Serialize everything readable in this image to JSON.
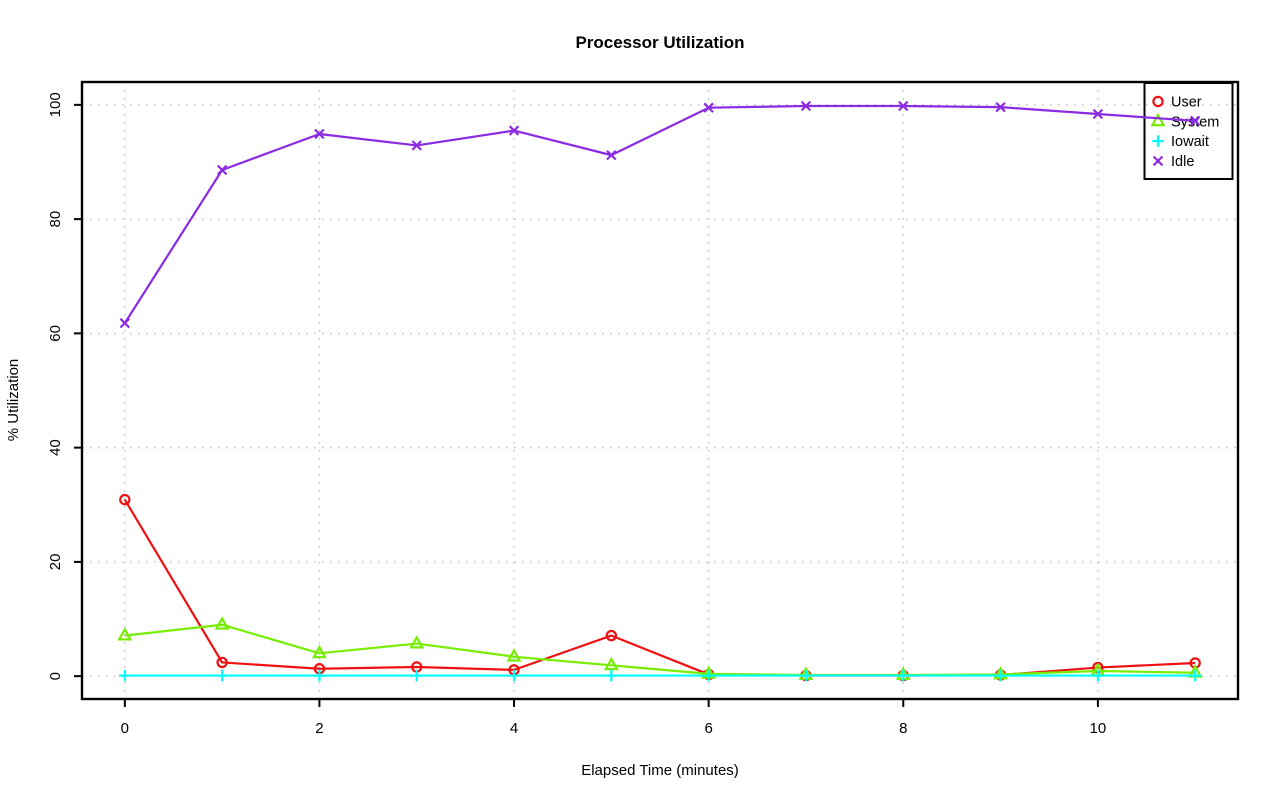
{
  "title": "Processor Utilization",
  "colors": {
    "user": "#EE1111",
    "system": "#76EE00",
    "iowait": "#00FFFF",
    "idle": "#8A2BE2",
    "grid": "#C4C4C4",
    "axis": "#000000",
    "background": "#FFFFFF"
  },
  "chart_data": {
    "type": "line",
    "title": "Processor Utilization",
    "xlabel": "Elapsed Time (minutes)",
    "ylabel": "% Utilization",
    "x": [
      0,
      1,
      2,
      3,
      4,
      5,
      6,
      7,
      8,
      9,
      10,
      11
    ],
    "xticks": [
      0,
      2,
      4,
      6,
      8,
      10
    ],
    "yticks": [
      0,
      20,
      40,
      60,
      80,
      100
    ],
    "xlim": [
      -0.44,
      11.44
    ],
    "ylim": [
      -4,
      104
    ],
    "grid": true,
    "grid_style": "dotted",
    "legend_position": "top-right",
    "legend_border": true,
    "series": [
      {
        "name": "User",
        "color": "#EE1111",
        "marker": "circle-open",
        "values": [
          30.9,
          2.4,
          1.3,
          1.6,
          1.1,
          7.1,
          0.3,
          0.1,
          0.1,
          0.2,
          1.5,
          2.3
        ]
      },
      {
        "name": "System",
        "color": "#76EE00",
        "marker": "triangle-open",
        "values": [
          7.1,
          9.0,
          4.0,
          5.7,
          3.4,
          1.9,
          0.4,
          0.2,
          0.2,
          0.3,
          0.9,
          0.6
        ]
      },
      {
        "name": "Iowait",
        "color": "#00FFFF",
        "marker": "plus",
        "values": [
          0.1,
          0.1,
          0.1,
          0.1,
          0.1,
          0.1,
          0.1,
          0.1,
          0.1,
          0.1,
          0.1,
          0.1
        ]
      },
      {
        "name": "Idle",
        "color": "#8A2BE2",
        "marker": "x",
        "values": [
          61.8,
          88.6,
          94.9,
          92.9,
          95.5,
          91.2,
          99.5,
          99.8,
          99.8,
          99.6,
          98.4,
          97.2
        ]
      }
    ]
  }
}
